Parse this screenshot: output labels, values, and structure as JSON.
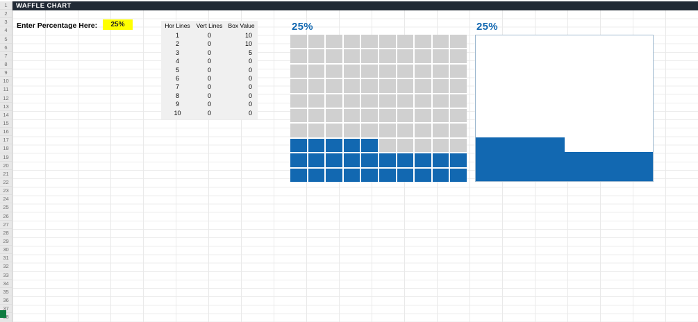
{
  "app": {
    "title": "WAFFLE CHART"
  },
  "controls": {
    "label": "Enter Percentage Here:",
    "percentage_value": "25%"
  },
  "helper_table": {
    "headers": [
      "Hor Lines",
      "Vert Lines",
      "Box Value"
    ],
    "rows": [
      [
        1,
        0,
        10
      ],
      [
        2,
        0,
        10
      ],
      [
        3,
        0,
        5
      ],
      [
        4,
        0,
        0
      ],
      [
        5,
        0,
        0
      ],
      [
        6,
        0,
        0
      ],
      [
        7,
        0,
        0
      ],
      [
        8,
        0,
        0
      ],
      [
        9,
        0,
        0
      ],
      [
        10,
        0,
        0
      ]
    ]
  },
  "row_numbers": [
    1,
    2,
    3,
    4,
    5,
    6,
    7,
    8,
    9,
    10,
    11,
    12,
    13,
    14,
    15,
    16,
    17,
    18,
    19,
    20,
    21,
    22,
    23,
    24,
    25,
    26,
    27,
    28,
    29,
    30,
    31,
    32,
    33,
    34,
    35,
    36,
    37,
    38
  ],
  "chart_data": [
    {
      "type": "heatmap",
      "subtype": "waffle-gridded",
      "title": "25%",
      "percentage": 25,
      "grid_rows": 10,
      "grid_cols": 10,
      "filled_cells": 25,
      "fill_color": "#1268B1",
      "empty_color": "#D0D0D0",
      "fill_order": "bottom-up, left-to-right"
    },
    {
      "type": "area",
      "subtype": "waffle-solid",
      "title": "25%",
      "percentage": 25,
      "grid_rows": 10,
      "grid_cols": 10,
      "filled_cells": 25,
      "fill_color": "#1268B1",
      "empty_color": "#FFFFFF",
      "fill_order": "bottom-up, left-to-right"
    }
  ],
  "colors": {
    "accent_blue": "#1268B1",
    "cell_gray": "#D0D0D0",
    "highlight_yellow": "#FFFF00",
    "title_bar": "#212A35",
    "selection_green": "#107C41"
  }
}
